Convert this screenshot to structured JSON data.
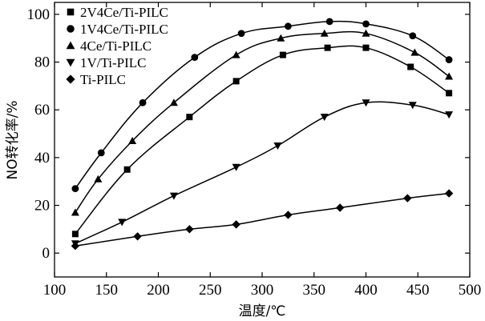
{
  "chart_data": {
    "type": "line",
    "title": "",
    "xlabel": "温度/℃",
    "ylabel": "NO转化率/%",
    "xlim": [
      100,
      500
    ],
    "ylim": [
      -10,
      105
    ],
    "xticks": [
      100,
      150,
      200,
      250,
      300,
      350,
      400,
      450,
      500
    ],
    "yticks": [
      0,
      20,
      40,
      60,
      80,
      100
    ],
    "grid": false,
    "legend_position": "top-left",
    "series": [
      {
        "name": "2V4Ce/Ti-PILC",
        "marker": "square",
        "x": [
          120,
          170,
          230,
          275,
          320,
          363,
          400,
          443,
          480
        ],
        "y": [
          8,
          35,
          57,
          72,
          83,
          86,
          86,
          78,
          67
        ]
      },
      {
        "name": "1V4Ce/Ti-PILC",
        "marker": "circle",
        "x": [
          120,
          145,
          185,
          235,
          280,
          325,
          365,
          400,
          445,
          480
        ],
        "y": [
          27,
          42,
          63,
          82,
          92,
          95,
          97,
          96,
          91,
          81
        ]
      },
      {
        "name": "4Ce/Ti-PILC",
        "marker": "triangle-up",
        "x": [
          120,
          142,
          175,
          215,
          275,
          318,
          360,
          400,
          447,
          480
        ],
        "y": [
          17,
          31,
          47,
          63,
          83,
          90,
          92,
          92,
          84,
          74
        ]
      },
      {
        "name": "1V/Ti-PILC",
        "marker": "triangle-down",
        "x": [
          120,
          165,
          215,
          275,
          315,
          360,
          400,
          445,
          480
        ],
        "y": [
          4,
          13,
          24,
          36,
          45,
          57,
          63,
          62,
          58
        ]
      },
      {
        "name": "Ti-PILC",
        "marker": "diamond",
        "x": [
          120,
          180,
          230,
          275,
          325,
          375,
          440,
          480
        ],
        "y": [
          3,
          7,
          10,
          12,
          16,
          19,
          23,
          25
        ]
      }
    ]
  }
}
